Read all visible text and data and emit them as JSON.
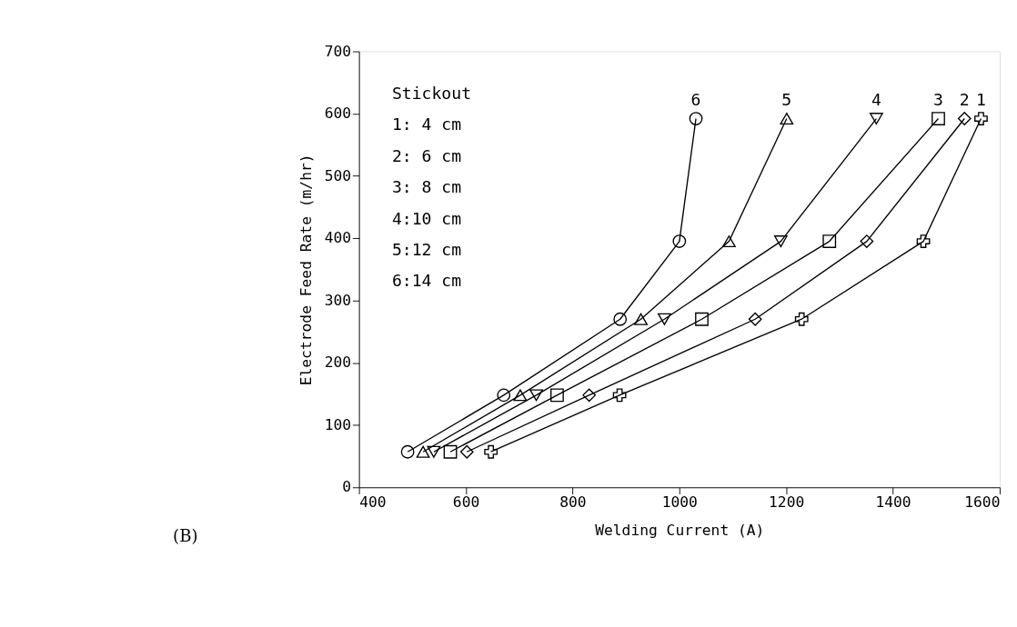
{
  "chart_data": {
    "type": "line",
    "xlabel": "Welding Current (A)",
    "ylabel": "Electrode Feed Rate (m/hr)",
    "xlim": [
      400,
      1600
    ],
    "xticks": [
      400,
      600,
      800,
      1000,
      1200,
      1400,
      1600
    ],
    "ylim": [
      0,
      700
    ],
    "yticks": [
      0,
      100,
      200,
      300,
      400,
      500,
      600,
      700
    ],
    "grid": false,
    "series": [
      {
        "name": "1",
        "color": "#000000",
        "marker": "cross",
        "x": [
          647,
          888,
          1229,
          1457,
          1565
        ],
        "values": [
          57,
          148,
          270,
          395,
          592
        ]
      },
      {
        "name": "2",
        "color": "#000000",
        "marker": "diamond",
        "x": [
          602,
          831,
          1142,
          1351,
          1534
        ],
        "values": [
          57,
          148,
          270,
          395,
          592
        ]
      },
      {
        "name": "3",
        "color": "#000000",
        "marker": "square",
        "x": [
          571,
          771,
          1042,
          1281,
          1485
        ],
        "values": [
          57,
          148,
          270,
          395,
          592
        ]
      },
      {
        "name": "4",
        "color": "#000000",
        "marker": "triangle-down",
        "x": [
          540,
          732,
          972,
          1190,
          1369
        ],
        "values": [
          57,
          148,
          270,
          395,
          592
        ]
      },
      {
        "name": "5",
        "color": "#000000",
        "marker": "triangle",
        "x": [
          520,
          702,
          928,
          1093,
          1201
        ],
        "values": [
          57,
          148,
          270,
          395,
          592
        ]
      },
      {
        "name": "6",
        "color": "#000000",
        "marker": "circle",
        "x": [
          491,
          671,
          889,
          1000,
          1031
        ],
        "values": [
          57,
          148,
          270,
          395,
          592
        ]
      }
    ],
    "annotations": [
      "Stickout",
      "1:  4 cm",
      "2:  6 cm",
      "3:  8 cm",
      "4:10 cm",
      "5:12 cm",
      "6:14 cm",
      "(B)"
    ]
  }
}
